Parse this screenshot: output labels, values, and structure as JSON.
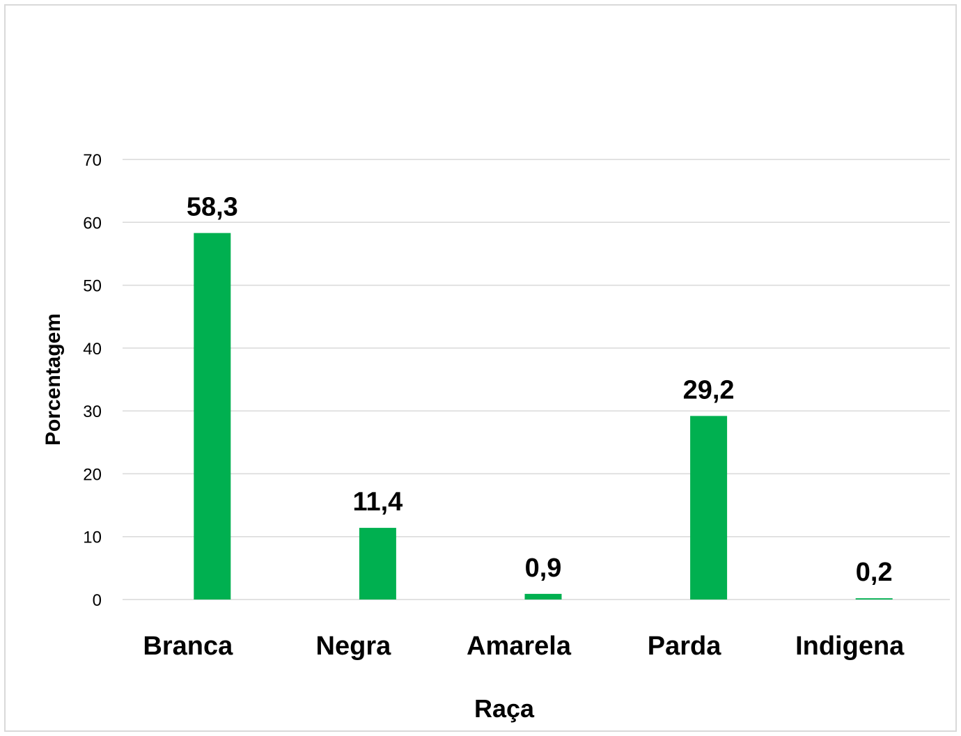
{
  "chart_data": {
    "type": "bar",
    "title": "",
    "xlabel": "Raça",
    "ylabel": "Porcentagem",
    "categories": [
      "Branca",
      "Negra",
      "Amarela",
      "Parda",
      "Indigena"
    ],
    "values": [
      58.3,
      11.4,
      0.9,
      29.2,
      0.2
    ],
    "value_labels": [
      "58,3",
      "11,4",
      "0,9",
      "29,2",
      "0,2"
    ],
    "ylim": [
      0,
      70
    ],
    "yticks": [
      0,
      10,
      20,
      30,
      40,
      50,
      60,
      70
    ],
    "ytick_labels": [
      "0",
      "10",
      "20",
      "30",
      "40",
      "50",
      "60",
      "70"
    ],
    "grid": true,
    "legend": "none",
    "bar_color": "#00b050",
    "grid_color": "#d9d9d9"
  }
}
